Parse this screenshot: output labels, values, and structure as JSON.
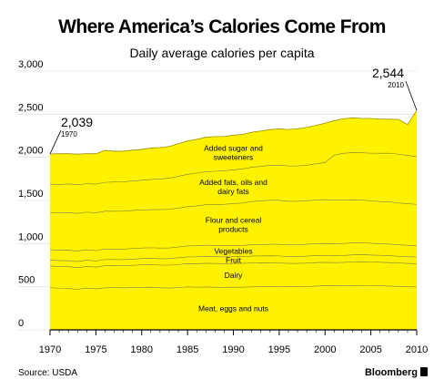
{
  "header": {
    "title": "Where America’s Calories Come From",
    "subtitle": "Daily average calories per capita"
  },
  "footer": {
    "source": "Source: USDA",
    "brand": "Bloomberg"
  },
  "colors": {
    "fill": "#FFF200",
    "line": "#000000"
  },
  "chart_data": {
    "type": "area",
    "stacked": true,
    "x": [
      1970,
      1971,
      1972,
      1973,
      1974,
      1975,
      1976,
      1977,
      1978,
      1979,
      1980,
      1981,
      1982,
      1983,
      1984,
      1985,
      1986,
      1987,
      1988,
      1989,
      1990,
      1991,
      1992,
      1993,
      1994,
      1995,
      1996,
      1997,
      1998,
      1999,
      2000,
      2001,
      2002,
      2003,
      2004,
      2005,
      2006,
      2007,
      2008,
      2009,
      2010
    ],
    "xlim": [
      1970,
      2010
    ],
    "x_ticks": [
      "1970",
      "1975",
      "1980",
      "1985",
      "1990",
      "1995",
      "2000",
      "2005",
      "2010"
    ],
    "ylim": [
      0,
      3000
    ],
    "y_ticks": [
      "0",
      "500",
      "1,000",
      "1,500",
      "2,000",
      "2,500",
      "3,000"
    ],
    "series": [
      {
        "name": "Meat, eggs and nuts",
        "values": [
          490,
          482,
          480,
          470,
          485,
          475,
          488,
          490,
          487,
          490,
          493,
          495,
          488,
          485,
          490,
          498,
          495,
          497,
          495,
          493,
          495,
          495,
          498,
          500,
          502,
          503,
          500,
          500,
          503,
          508,
          512,
          510,
          510,
          512,
          515,
          515,
          512,
          508,
          505,
          500,
          497
        ]
      },
      {
        "name": "Dairy",
        "values": [
          250,
          250,
          252,
          252,
          250,
          252,
          255,
          255,
          255,
          258,
          260,
          262,
          262,
          265,
          268,
          270,
          272,
          275,
          275,
          273,
          275,
          275,
          277,
          278,
          275,
          272,
          270,
          270,
          270,
          272,
          270,
          270,
          272,
          275,
          275,
          272,
          272,
          272,
          270,
          270,
          270
        ]
      },
      {
        "name": "Fruit",
        "values": [
          70,
          70,
          70,
          70,
          72,
          72,
          72,
          70,
          72,
          73,
          73,
          72,
          75,
          76,
          78,
          78,
          80,
          82,
          80,
          80,
          78,
          78,
          80,
          80,
          82,
          82,
          80,
          80,
          82,
          82,
          80,
          80,
          80,
          82,
          82,
          80,
          80,
          80,
          78,
          78,
          78
        ]
      },
      {
        "name": "Vegetables",
        "values": [
          120,
          120,
          122,
          122,
          122,
          120,
          122,
          122,
          122,
          123,
          123,
          123,
          124,
          124,
          125,
          127,
          128,
          128,
          128,
          130,
          130,
          130,
          132,
          132,
          133,
          135,
          135,
          135,
          137,
          138,
          140,
          140,
          140,
          140,
          138,
          137,
          135,
          135,
          133,
          132,
          130
        ]
      },
      {
        "name": "Flour and cereal products",
        "values": [
          430,
          432,
          435,
          436,
          435,
          438,
          438,
          438,
          440,
          440,
          440,
          442,
          445,
          448,
          450,
          455,
          462,
          468,
          475,
          480,
          485,
          492,
          500,
          505,
          510,
          510,
          505,
          505,
          505,
          505,
          508,
          505,
          500,
          500,
          495,
          492,
          488,
          488,
          485,
          482,
          480
        ]
      },
      {
        "name": "Added fats, oils and dairy fats",
        "values": [
          330,
          332,
          333,
          333,
          330,
          333,
          335,
          340,
          340,
          342,
          345,
          350,
          355,
          360,
          368,
          375,
          380,
          385,
          385,
          388,
          392,
          395,
          398,
          400,
          405,
          408,
          410,
          410,
          412,
          420,
          430,
          520,
          545,
          545,
          548,
          552,
          560,
          565,
          565,
          560,
          553
        ]
      },
      {
        "name": "Added sugar and sweeteners",
        "values": [
          349,
          356,
          350,
          354,
          348,
          352,
          370,
          356,
          355,
          357,
          358,
          364,
          364,
          368,
          378,
          388,
          392,
          397,
          403,
          398,
          402,
          400,
          406,
          410,
          415,
          420,
          423,
          432,
          437,
          445,
          455,
          400,
          400,
          404,
          398,
          403,
          397,
          394,
          404,
          358,
          536
        ]
      }
    ],
    "annotations": [
      {
        "value": "2,039",
        "year": "1970"
      },
      {
        "value": "2,544",
        "year": "2010"
      }
    ]
  }
}
